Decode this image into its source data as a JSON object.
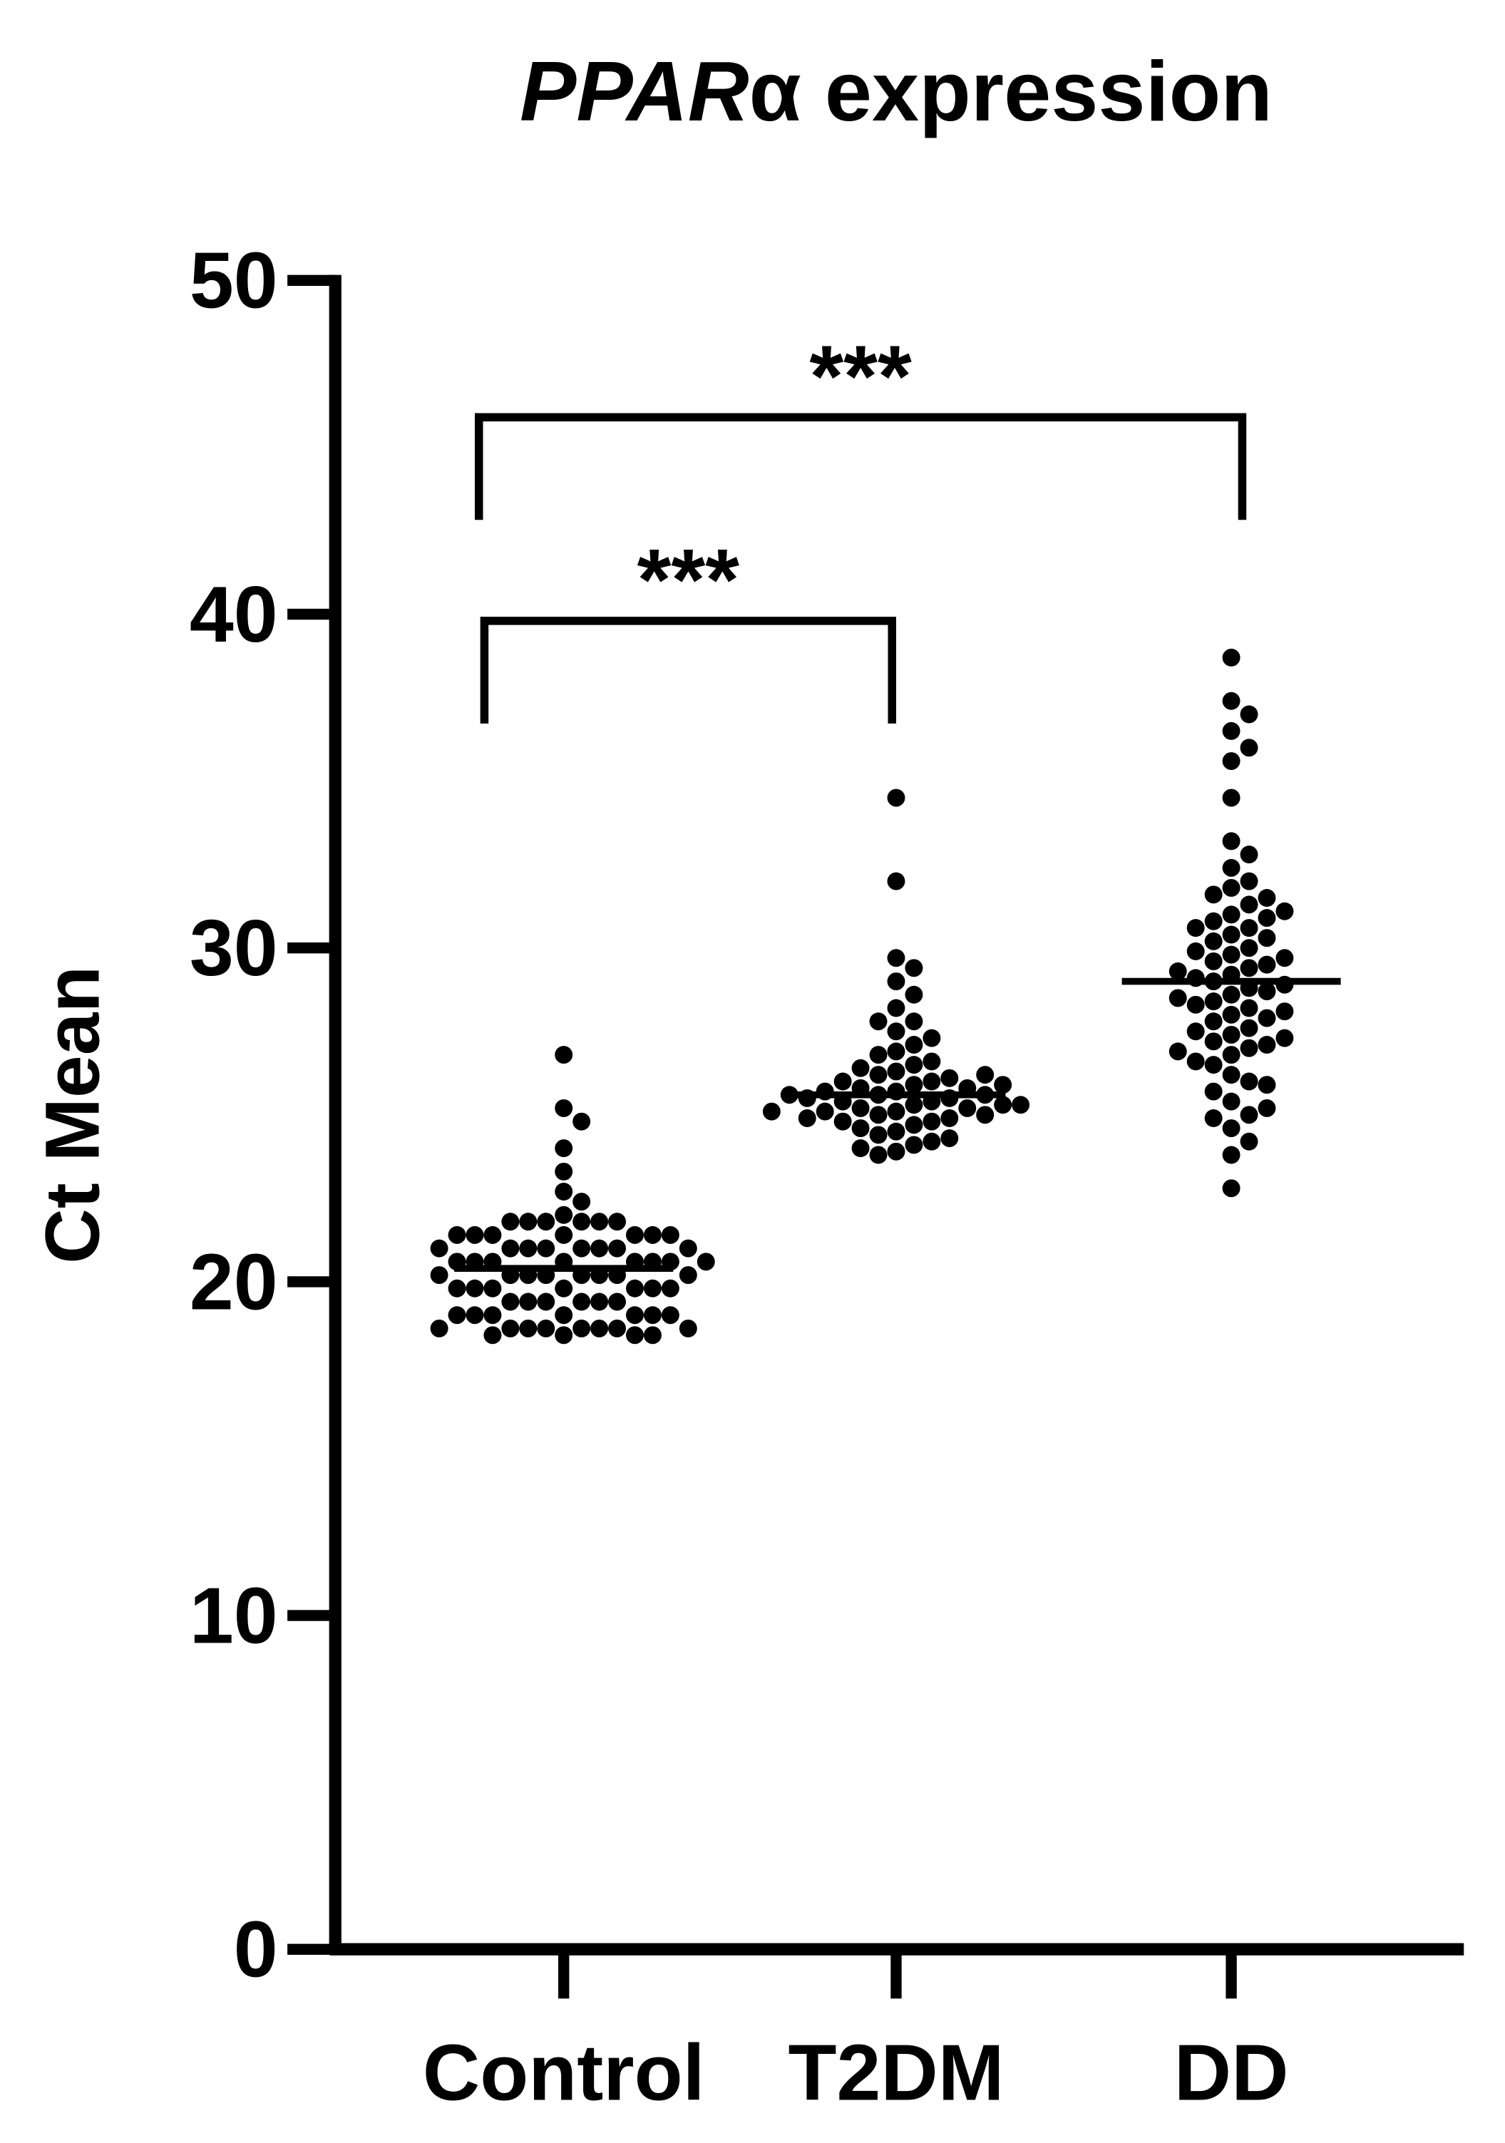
{
  "chart_data": {
    "type": "dot",
    "title_parts": [
      "PPAR",
      "α expression"
    ],
    "y_label": "Ct Mean",
    "categories": [
      "Control",
      "T2DM",
      "DD"
    ],
    "values": [
      [
        26.8,
        25.2,
        24.8,
        24.0,
        23.3,
        22.7,
        22.4,
        22.0,
        21.8,
        21.8,
        21.8,
        21.8,
        21.8,
        21.8,
        21.4,
        21.4,
        21.4,
        21.4,
        21.4,
        21.4,
        21.4,
        21.0,
        21.0,
        21.0,
        21.0,
        21.0,
        21.0,
        21.0,
        21.0,
        20.6,
        20.6,
        20.6,
        20.6,
        20.6,
        20.6,
        20.6,
        20.6,
        20.2,
        20.2,
        20.2,
        20.2,
        20.2,
        20.2,
        20.2,
        20.2,
        19.8,
        19.8,
        19.8,
        19.8,
        19.8,
        19.8,
        19.8,
        19.4,
        19.4,
        19.4,
        19.4,
        19.4,
        19.4,
        19.0,
        19.0,
        19.0,
        19.0,
        19.0,
        19.0,
        19.0,
        18.6,
        18.6,
        18.6,
        18.6,
        18.6,
        18.6,
        18.6,
        18.6,
        18.4,
        18.4,
        18.4,
        18.4
      ],
      [
        34.5,
        32.0,
        29.7,
        29.4,
        29.0,
        28.6,
        28.2,
        27.8,
        27.8,
        27.5,
        27.3,
        27.1,
        26.9,
        26.8,
        26.6,
        26.5,
        26.4,
        26.3,
        26.2,
        26.1,
        26.0,
        26.0,
        25.9,
        25.8,
        25.8,
        25.7,
        25.7,
        25.6,
        25.6,
        25.5,
        25.5,
        25.4,
        25.4,
        25.3,
        25.3,
        25.2,
        25.2,
        25.1,
        25.1,
        25.0,
        25.0,
        24.9,
        24.9,
        24.8,
        24.7,
        24.6,
        24.5,
        24.4,
        24.3,
        24.2,
        24.1,
        24.0,
        23.9,
        23.8,
        25.6,
        25.3,
        25.9,
        26.2,
        24.8,
        25.1
      ],
      [
        38.7,
        37.4,
        37.0,
        36.5,
        36.0,
        35.6,
        34.5,
        33.2,
        32.8,
        32.4,
        32.0,
        31.8,
        31.6,
        31.3,
        31.0,
        30.8,
        30.6,
        30.4,
        30.2,
        30.0,
        29.8,
        29.6,
        29.4,
        29.2,
        29.0,
        28.8,
        28.6,
        28.4,
        28.2,
        28.0,
        27.8,
        27.6,
        27.4,
        27.2,
        27.0,
        26.8,
        26.5,
        26.2,
        26.0,
        25.7,
        25.4,
        25.0,
        24.6,
        24.2,
        23.8,
        22.8,
        31.5,
        30.9,
        30.3,
        29.9,
        29.5,
        29.1,
        28.7,
        28.3,
        27.9,
        27.5,
        27.1,
        26.6,
        25.9,
        25.2,
        30.6,
        29.7,
        28.9,
        28.1,
        27.3,
        31.1,
        29.3,
        28.5,
        26.9,
        24.9
      ]
    ],
    "medians": [
      20.4,
      25.6,
      29.0
    ],
    "comparisons": [
      {
        "from": 0,
        "to": 2,
        "label": "***",
        "y": 45.9
      },
      {
        "from": 0,
        "to": 1,
        "label": "***",
        "y": 39.8
      }
    ],
    "color": "#000000",
    "ylim": [
      0,
      50
    ],
    "yticks": [
      0,
      10,
      20,
      30,
      40,
      50
    ]
  }
}
